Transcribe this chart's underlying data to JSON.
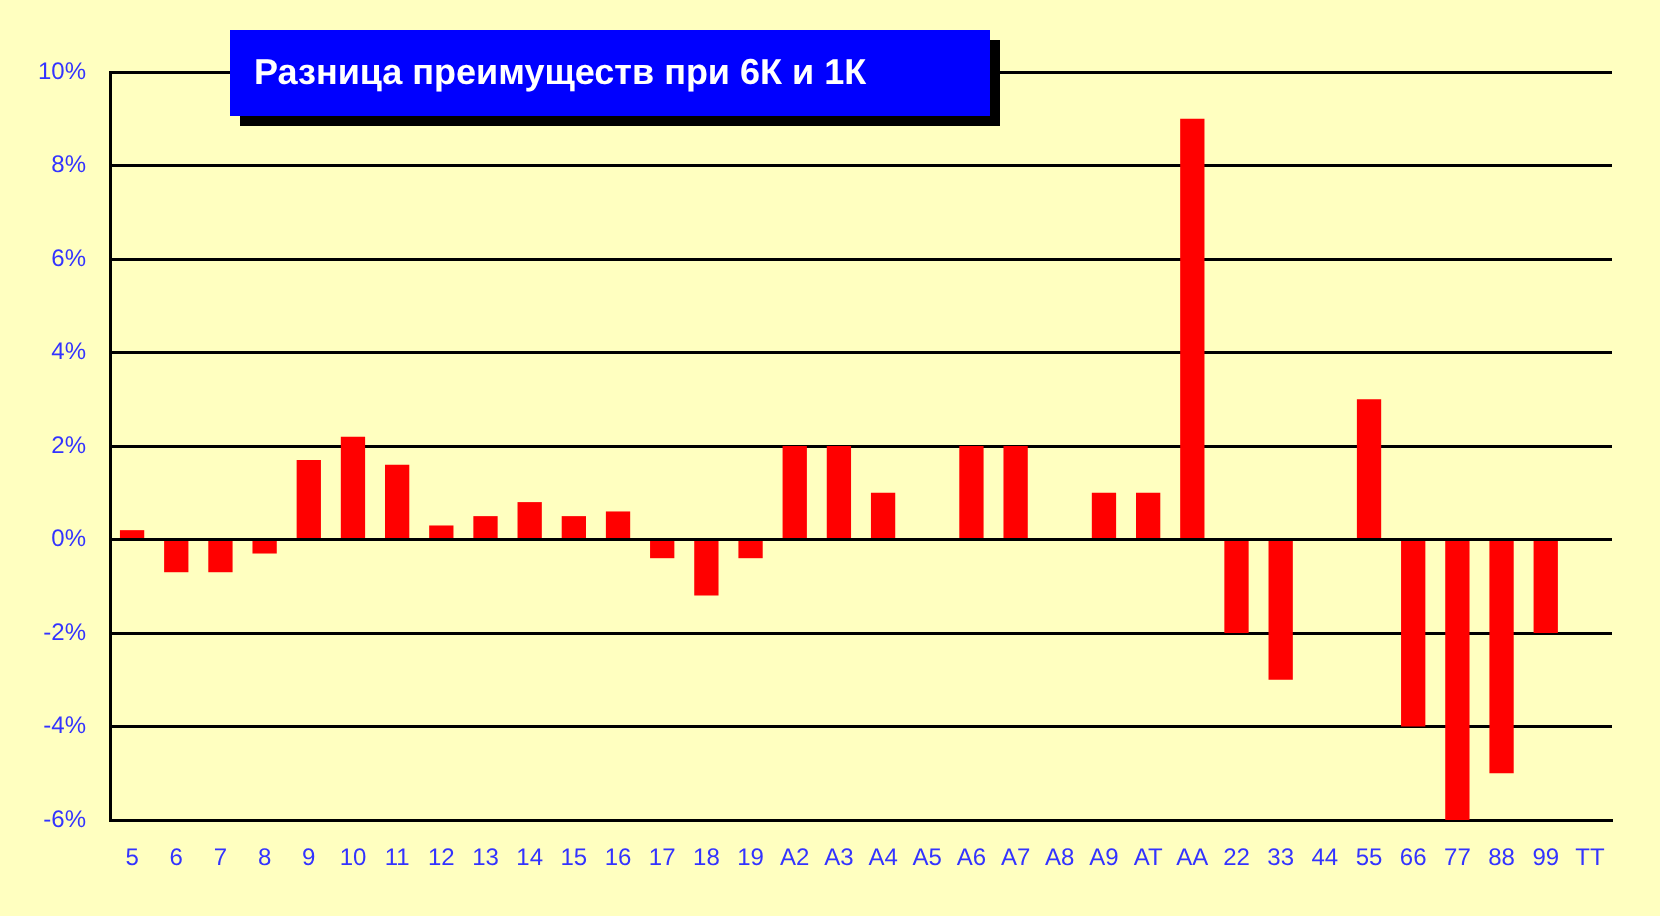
{
  "chart_data": {
    "type": "bar",
    "title": "Разница преимуществ при 6К и 1К",
    "categories": [
      "5",
      "6",
      "7",
      "8",
      "9",
      "10",
      "11",
      "12",
      "13",
      "14",
      "15",
      "16",
      "17",
      "18",
      "19",
      "A2",
      "A3",
      "A4",
      "A5",
      "A6",
      "A7",
      "A8",
      "A9",
      "AT",
      "AA",
      "22",
      "33",
      "44",
      "55",
      "66",
      "77",
      "88",
      "99",
      "TT"
    ],
    "values": [
      0.2,
      -0.7,
      -0.7,
      -0.3,
      1.7,
      2.2,
      1.6,
      0.3,
      0.5,
      0.8,
      0.5,
      0.6,
      -0.4,
      -1.2,
      -0.4,
      2,
      2,
      1,
      0,
      2,
      2,
      0,
      1,
      1,
      9,
      -2,
      -3,
      0,
      3,
      -4,
      -6,
      -5,
      -2,
      0
    ],
    "color": "#ff0000",
    "ylim": [
      -6,
      10
    ],
    "yticks": [
      {
        "value": -6,
        "label": "-6%"
      },
      {
        "value": -4,
        "label": "-4%"
      },
      {
        "value": -2,
        "label": "-2%"
      },
      {
        "value": 0,
        "label": "0%"
      },
      {
        "value": 2,
        "label": "2%"
      },
      {
        "value": 4,
        "label": "4%"
      },
      {
        "value": 6,
        "label": "6%"
      },
      {
        "value": 8,
        "label": "8%"
      },
      {
        "value": 10,
        "label": "10%"
      }
    ],
    "grid": "y"
  }
}
